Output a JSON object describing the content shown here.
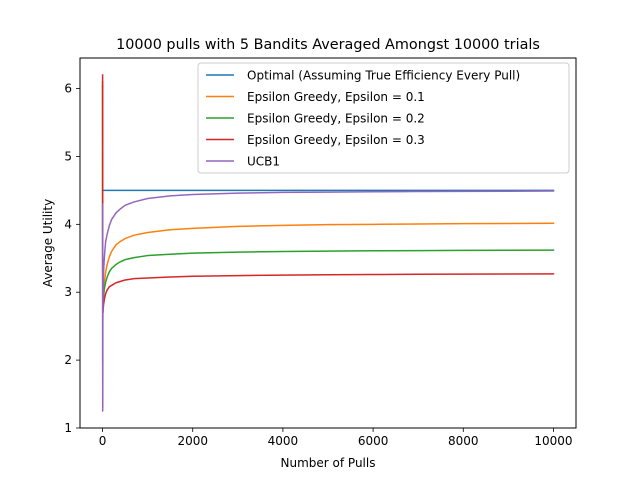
{
  "chart_data": {
    "type": "line",
    "title": "10000 pulls with 5 Bandits Averaged Amongst 10000 trials",
    "xlabel": "Number of Pulls",
    "ylabel": "Average Utility",
    "xlim": [
      -500,
      10500
    ],
    "ylim": [
      1.0,
      6.45
    ],
    "xticks": [
      0,
      2000,
      4000,
      6000,
      8000,
      10000
    ],
    "yticks": [
      1,
      2,
      3,
      4,
      5,
      6
    ],
    "xtick_labels": [
      "0",
      "2000",
      "4000",
      "6000",
      "8000",
      "10000"
    ],
    "ytick_labels": [
      "1",
      "2",
      "3",
      "4",
      "5",
      "6"
    ],
    "grid": false,
    "legend_position": "top-right",
    "series": [
      {
        "name": "Optimal (Assuming True Efficiency Every Pull)",
        "color": "#1f77b4",
        "x": [
          1,
          10000
        ],
        "y": [
          4.5,
          4.5
        ]
      },
      {
        "name": "Epsilon Greedy, Epsilon = 0.1",
        "color": "#ff7f0e",
        "x": [
          1,
          2,
          3,
          5,
          10,
          20,
          40,
          70,
          100,
          150,
          200,
          300,
          400,
          500,
          700,
          1000,
          1500,
          2000,
          3000,
          4000,
          5000,
          6000,
          7000,
          8000,
          9000,
          10000
        ],
        "y": [
          6.05,
          4.6,
          3.9,
          3.1,
          2.95,
          3.0,
          3.15,
          3.3,
          3.4,
          3.52,
          3.6,
          3.7,
          3.75,
          3.79,
          3.84,
          3.88,
          3.92,
          3.94,
          3.97,
          3.985,
          3.995,
          4.0,
          4.005,
          4.01,
          4.013,
          4.016
        ]
      },
      {
        "name": "Epsilon Greedy, Epsilon = 0.2",
        "color": "#2ca02c",
        "x": [
          1,
          2,
          3,
          5,
          10,
          20,
          40,
          70,
          100,
          150,
          200,
          300,
          400,
          500,
          700,
          1000,
          1500,
          2000,
          3000,
          4000,
          5000,
          6000,
          7000,
          8000,
          9000,
          10000
        ],
        "y": [
          6.1,
          4.3,
          3.5,
          2.95,
          2.85,
          2.92,
          3.05,
          3.15,
          3.22,
          3.3,
          3.35,
          3.41,
          3.45,
          3.48,
          3.51,
          3.54,
          3.56,
          3.575,
          3.59,
          3.6,
          3.605,
          3.61,
          3.613,
          3.616,
          3.619,
          3.62
        ]
      },
      {
        "name": "Epsilon Greedy, Epsilon = 0.3",
        "color": "#d62728",
        "x": [
          1,
          2,
          3,
          5,
          10,
          20,
          40,
          70,
          100,
          150,
          200,
          300,
          400,
          500,
          700,
          1000,
          1500,
          2000,
          3000,
          4000,
          5000,
          6000,
          7000,
          8000,
          9000,
          10000
        ],
        "y": [
          6.2,
          4.0,
          3.2,
          2.75,
          2.7,
          2.8,
          2.9,
          2.98,
          3.03,
          3.08,
          3.1,
          3.14,
          3.16,
          3.18,
          3.2,
          3.21,
          3.225,
          3.235,
          3.245,
          3.252,
          3.257,
          3.261,
          3.264,
          3.267,
          3.269,
          3.27
        ]
      },
      {
        "name": "UCB1",
        "color": "#9467bd",
        "x": [
          1,
          2,
          3,
          4,
          5,
          7,
          10,
          15,
          20,
          30,
          50,
          70,
          100,
          150,
          200,
          300,
          400,
          500,
          700,
          1000,
          1500,
          2000,
          3000,
          4000,
          5000,
          6000,
          7000,
          8000,
          9000,
          10000
        ],
        "y": [
          2.0,
          4.3,
          1.25,
          3.8,
          1.3,
          2.5,
          2.9,
          3.05,
          3.25,
          3.4,
          3.6,
          3.75,
          3.85,
          3.98,
          4.07,
          4.17,
          4.23,
          4.28,
          4.33,
          4.38,
          4.42,
          4.44,
          4.46,
          4.47,
          4.475,
          4.48,
          4.483,
          4.486,
          4.488,
          4.49
        ]
      }
    ]
  }
}
